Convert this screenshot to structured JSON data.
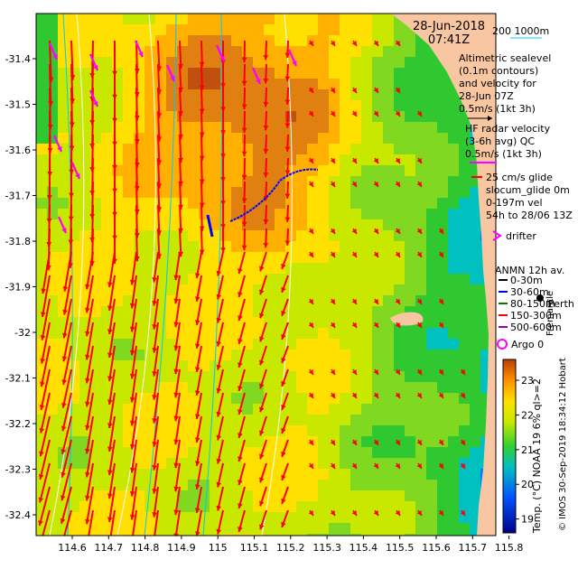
{
  "header": {
    "date": "28-Jun-2018",
    "time": "07:41Z",
    "depth_legend": "200  1000m"
  },
  "legend": {
    "altimetric": [
      "Altimetric sealevel",
      "(0.1m contours)",
      "and velocity for",
      "28-Jun 07Z",
      "0.5m/s (1kt 3h)"
    ],
    "hf_radar": [
      "HF radar velocity",
      "(3-6h avg) QC",
      "0.5m/s (1kt 3h)"
    ],
    "glider": [
      "25 cm/s glide",
      "slocum_glide 0m",
      "0-197m vel",
      "54h to 28/06 13Z"
    ],
    "drifter": "drifter",
    "anmn": {
      "title": "ANMN 12h av.",
      "rows": [
        "0-30m",
        "30-60m",
        "80-150m",
        "150-300m",
        "500-600m"
      ]
    },
    "argo": "Argo 0"
  },
  "places": {
    "perth": "Perth",
    "fremantle": "Fremantle"
  },
  "colorbar": {
    "label": "Temp. (°C) NOAA 19 6% ql>=2",
    "ticks": [
      "19",
      "20",
      "21",
      "22",
      "23"
    ],
    "min": 18.6,
    "max": 23.6
  },
  "credit": "© IMOS 30-Sep-2019 18:34:12 Hobart",
  "axes": {
    "lat_ticks": [
      "-31.4",
      "-31.5",
      "-31.6",
      "-31.7",
      "-31.8",
      "-31.9",
      "-32",
      "-32.1",
      "-32.2",
      "-32.3",
      "-32.4"
    ],
    "lon_ticks": [
      "114.6",
      "114.7",
      "114.8",
      "114.9",
      "115",
      "115.1",
      "115.2",
      "115.3",
      "115.4",
      "115.5",
      "115.6",
      "115.7",
      "115.8"
    ]
  },
  "colors": {
    "land": "#f8c6a0",
    "arrow_hf": "#ff0000",
    "arrow_glider": "#0000ff",
    "drifter": "#ff00ff",
    "contour": "#ffffff",
    "isobath": "#00c8ff"
  }
}
